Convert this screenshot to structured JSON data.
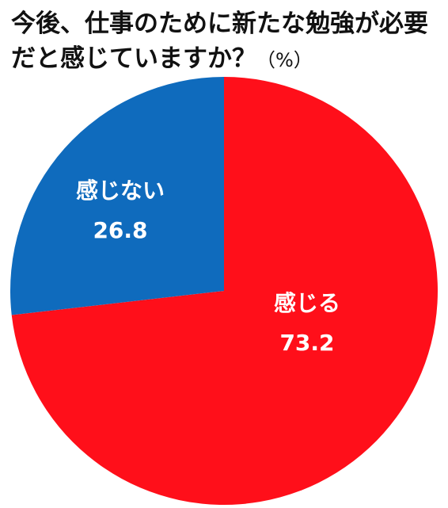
{
  "title": "今後、仕事のために新たな勉強が必要だと感じていますか？",
  "unit": "（%）",
  "chart_data": {
    "type": "pie",
    "title": "今後、仕事のために新たな勉強が必要だと感じていますか？",
    "unit": "%",
    "labels": [
      "感じる",
      "感じない"
    ],
    "values": [
      73.2,
      26.8
    ],
    "value_labels": [
      "73.2",
      "26.8"
    ],
    "colors": [
      "#ff0f1a",
      "#0f6bbd"
    ],
    "start_angle_deg": 0,
    "direction": "clockwise"
  }
}
